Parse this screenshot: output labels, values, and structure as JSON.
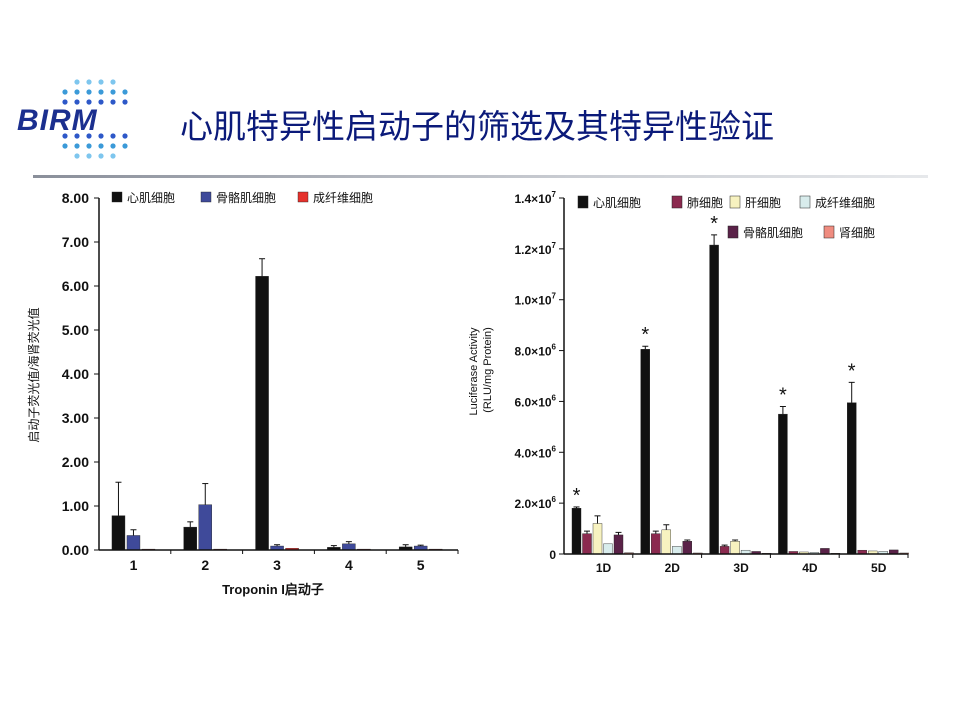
{
  "header": {
    "logo_text": "BIRM",
    "title": "心肌特异性启动子的筛选及其特异性验证"
  },
  "chart_data": [
    {
      "type": "bar",
      "ylabel": "启动子荧光值/海肾荧光值",
      "xlabel": "Troponin I启动子",
      "ylim": [
        0,
        8
      ],
      "yticks": [
        "0.00",
        "1.00",
        "2.00",
        "3.00",
        "4.00",
        "5.00",
        "6.00",
        "7.00",
        "8.00"
      ],
      "categories": [
        "1",
        "2",
        "3",
        "4",
        "5"
      ],
      "legend_position": "top",
      "series": [
        {
          "name": "心肌细胞",
          "color": "#111111",
          "values": [
            0.78,
            0.52,
            6.22,
            0.06,
            0.07
          ],
          "errors": [
            0.76,
            0.12,
            0.4,
            0.04,
            0.05
          ]
        },
        {
          "name": "骨骼肌细胞",
          "color": "#3f4a9a",
          "values": [
            0.33,
            1.03,
            0.09,
            0.14,
            0.09
          ],
          "errors": [
            0.13,
            0.48,
            0.03,
            0.05,
            0.02
          ]
        },
        {
          "name": "成纤维细胞",
          "color": "#e5312c",
          "values": [
            0.02,
            0.02,
            0.04,
            0.02,
            0.02
          ],
          "errors": [
            0,
            0,
            0,
            0,
            0
          ]
        }
      ]
    },
    {
      "type": "bar",
      "ylabel": "Luciferase Activity\n(RLU/mg Protein)",
      "ylim": [
        0,
        14000000
      ],
      "yticks": [
        {
          "value": 0,
          "label": "0"
        },
        {
          "value": 2000000,
          "label": "2.0×10",
          "exp": "6"
        },
        {
          "value": 4000000,
          "label": "4.0×10",
          "exp": "6"
        },
        {
          "value": 6000000,
          "label": "6.0×10",
          "exp": "6"
        },
        {
          "value": 8000000,
          "label": "8.0×10",
          "exp": "6"
        },
        {
          "value": 10000000,
          "label": "1.0×10",
          "exp": "7"
        },
        {
          "value": 12000000,
          "label": "1.2×10",
          "exp": "7"
        },
        {
          "value": 14000000,
          "label": "1.4×10",
          "exp": "7"
        }
      ],
      "categories": [
        "1D",
        "2D",
        "3D",
        "4D",
        "5D"
      ],
      "legend_position": "top",
      "significance": [
        "*",
        "*",
        "*",
        "*",
        "*"
      ],
      "series": [
        {
          "name": "心肌细胞",
          "color": "#111111",
          "values": [
            1800000,
            8050000,
            12150000,
            5500000,
            5950000
          ],
          "errors": [
            50000,
            120000,
            400000,
            300000,
            800000
          ]
        },
        {
          "name": "肺细胞",
          "color": "#8b2a4f",
          "values": [
            800000,
            800000,
            300000,
            100000,
            150000
          ],
          "errors": [
            100000,
            100000,
            50000,
            0,
            0
          ]
        },
        {
          "name": "肝细胞",
          "color": "#f7f2c0",
          "values": [
            1200000,
            950000,
            500000,
            80000,
            120000
          ],
          "errors": [
            300000,
            200000,
            50000,
            0,
            0
          ]
        },
        {
          "name": "成纤维细胞",
          "color": "#d8ecec",
          "values": [
            400000,
            300000,
            150000,
            60000,
            100000
          ],
          "errors": [
            0,
            0,
            0,
            0,
            0
          ]
        },
        {
          "name": "骨骼肌细胞",
          "color": "#5a2248",
          "values": [
            750000,
            500000,
            100000,
            220000,
            160000
          ],
          "errors": [
            100000,
            50000,
            0,
            0,
            0
          ]
        },
        {
          "name": "肾细胞",
          "color": "#ef8c80",
          "values": [
            50000,
            40000,
            30000,
            30000,
            40000
          ],
          "errors": [
            0,
            0,
            0,
            0,
            0
          ]
        }
      ]
    }
  ]
}
